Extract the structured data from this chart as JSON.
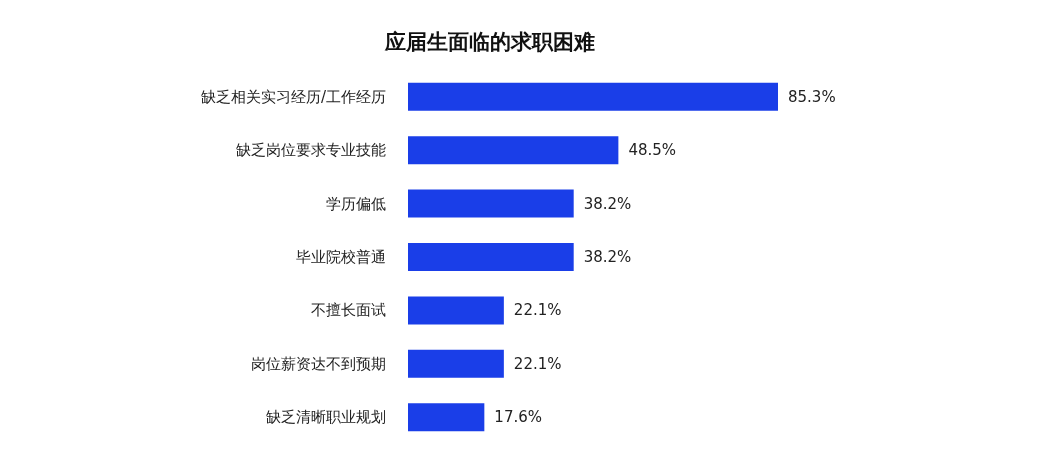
{
  "chart_data": {
    "type": "bar",
    "orientation": "horizontal",
    "title": "应届生面临的求职困难",
    "categories": [
      "缺乏相关实习经历/工作经历",
      "缺乏岗位要求专业技能",
      "学历偏低",
      "毕业院校普通",
      "不擅长面试",
      "岗位薪资达不到预期",
      "缺乏清晰职业规划"
    ],
    "values": [
      85.3,
      48.5,
      38.2,
      38.2,
      22.1,
      22.1,
      17.6
    ],
    "value_labels": [
      "85.3%",
      "48.5%",
      "38.2%",
      "38.2%",
      "22.1%",
      "22.1%",
      "17.6%"
    ],
    "color": "#1a3ee8"
  }
}
